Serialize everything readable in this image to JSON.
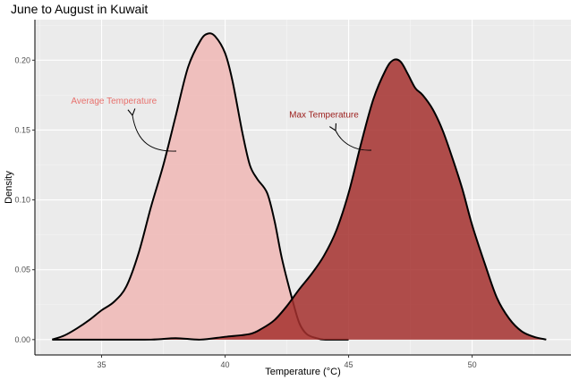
{
  "chart_data": {
    "type": "area",
    "title": "June to August in Kuwait",
    "xlabel": "Temperature (°C)",
    "ylabel": "Density",
    "xlim": [
      32.3,
      54.0
    ],
    "ylim": [
      -0.011,
      0.229
    ],
    "x_ticks": [
      35,
      40,
      45,
      50
    ],
    "y_ticks": [
      0.0,
      0.05,
      0.1,
      0.15,
      0.2
    ],
    "x_tick_labels": [
      "35",
      "40",
      "45",
      "50"
    ],
    "y_tick_labels": [
      "0.00",
      "0.05",
      "0.10",
      "0.15",
      "0.20"
    ],
    "grid": true,
    "series": [
      {
        "name": "Average Temperature",
        "fill": "#f0b7b5",
        "x": [
          33.0,
          33.5,
          34.0,
          34.5,
          35.0,
          35.5,
          36.0,
          36.5,
          37.0,
          37.5,
          38.0,
          38.5,
          39.0,
          39.3,
          39.6,
          40.0,
          40.3,
          40.7,
          41.0,
          41.3,
          41.7,
          42.0,
          42.3,
          42.7,
          43.0,
          43.3,
          43.7,
          44.0,
          44.5,
          45.0
        ],
        "y": [
          0.0,
          0.003,
          0.008,
          0.014,
          0.021,
          0.027,
          0.038,
          0.062,
          0.095,
          0.125,
          0.16,
          0.195,
          0.214,
          0.219,
          0.217,
          0.205,
          0.185,
          0.148,
          0.125,
          0.115,
          0.105,
          0.085,
          0.058,
          0.03,
          0.012,
          0.004,
          0.001,
          0.0,
          0.0,
          0.0
        ]
      },
      {
        "name": "Max Temperature",
        "fill": "#a5302e",
        "x": [
          33.0,
          35.0,
          37.0,
          38.0,
          39.0,
          40.0,
          41.0,
          41.5,
          42.0,
          42.5,
          43.0,
          43.5,
          44.0,
          44.5,
          45.0,
          45.5,
          46.0,
          46.5,
          46.8,
          47.1,
          47.4,
          47.7,
          48.0,
          48.4,
          48.8,
          49.2,
          49.6,
          50.0,
          50.5,
          51.0,
          51.5,
          52.0,
          52.5,
          53.0
        ],
        "y": [
          0.0,
          0.0,
          0.0,
          0.001,
          0.0,
          0.002,
          0.004,
          0.008,
          0.014,
          0.024,
          0.036,
          0.047,
          0.06,
          0.078,
          0.105,
          0.14,
          0.172,
          0.193,
          0.2,
          0.199,
          0.19,
          0.18,
          0.175,
          0.165,
          0.15,
          0.13,
          0.108,
          0.082,
          0.055,
          0.03,
          0.015,
          0.006,
          0.002,
          0.0
        ]
      }
    ],
    "annotations": [
      {
        "text": "Average Temperature",
        "x": 35.5,
        "y": 0.169,
        "color": "#e8716d"
      },
      {
        "text": "Max Temperature",
        "x": 44.0,
        "y": 0.159,
        "color": "#9b1c1a"
      }
    ]
  }
}
